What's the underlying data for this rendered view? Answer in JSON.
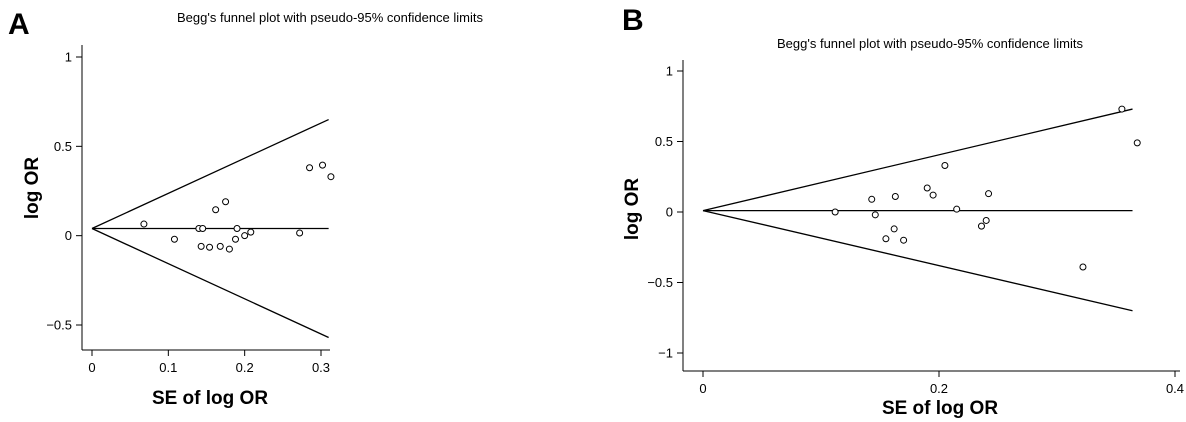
{
  "chart_data": [
    {
      "type": "scatter",
      "panel_label": "A",
      "title": "Begg's funnel plot with pseudo-95% confidence limits",
      "xlabel": "SE of log OR",
      "ylabel": "log OR",
      "xlim": [
        0,
        0.31
      ],
      "ylim": [
        -0.62,
        1.0
      ],
      "xticks": [
        0,
        0.1,
        0.2,
        0.3
      ],
      "xtick_labels": [
        "0",
        "0.1",
        "0.2",
        "0.3"
      ],
      "yticks": [
        -0.5,
        0,
        0.5,
        1
      ],
      "ytick_labels": [
        "−0.5",
        "0",
        "0.5",
        "1"
      ],
      "pooled": 0.04,
      "funnel_end_x": 0.31,
      "upper_end_y": 0.65,
      "lower_end_y": -0.57,
      "points": [
        [
          0.068,
          0.065
        ],
        [
          0.108,
          -0.02
        ],
        [
          0.14,
          0.04
        ],
        [
          0.143,
          -0.06
        ],
        [
          0.145,
          0.04
        ],
        [
          0.154,
          -0.065
        ],
        [
          0.162,
          0.145
        ],
        [
          0.168,
          -0.06
        ],
        [
          0.175,
          0.19
        ],
        [
          0.18,
          -0.075
        ],
        [
          0.188,
          -0.02
        ],
        [
          0.19,
          0.04
        ],
        [
          0.2,
          0.0
        ],
        [
          0.208,
          0.02
        ],
        [
          0.272,
          0.015
        ],
        [
          0.285,
          0.38
        ],
        [
          0.302,
          0.395
        ],
        [
          0.313,
          0.33
        ]
      ]
    },
    {
      "type": "scatter",
      "panel_label": "B",
      "title": "Begg's funnel plot with pseudo-95% confidence limits",
      "xlabel": "SE of log OR",
      "ylabel": "log OR",
      "xlim": [
        0,
        0.4
      ],
      "ylim": [
        -1.05,
        1.05
      ],
      "xticks": [
        0,
        0.2,
        0.4
      ],
      "xtick_labels": [
        "0",
        "0.2",
        "0.4"
      ],
      "yticks": [
        -1,
        -0.5,
        0,
        0.5,
        1
      ],
      "ytick_labels": [
        "−1",
        "−0.5",
        "0",
        "0.5",
        "1"
      ],
      "pooled": 0.01,
      "funnel_end_x": 0.364,
      "upper_end_y": 0.73,
      "lower_end_y": -0.7,
      "points": [
        [
          0.112,
          0.0
        ],
        [
          0.143,
          0.09
        ],
        [
          0.146,
          -0.02
        ],
        [
          0.155,
          -0.19
        ],
        [
          0.162,
          -0.12
        ],
        [
          0.163,
          0.11
        ],
        [
          0.17,
          -0.2
        ],
        [
          0.19,
          0.17
        ],
        [
          0.195,
          0.12
        ],
        [
          0.205,
          0.33
        ],
        [
          0.215,
          0.02
        ],
        [
          0.236,
          -0.1
        ],
        [
          0.24,
          -0.06
        ],
        [
          0.242,
          0.13
        ],
        [
          0.322,
          -0.39
        ],
        [
          0.355,
          0.73
        ],
        [
          0.368,
          0.49
        ]
      ]
    }
  ]
}
